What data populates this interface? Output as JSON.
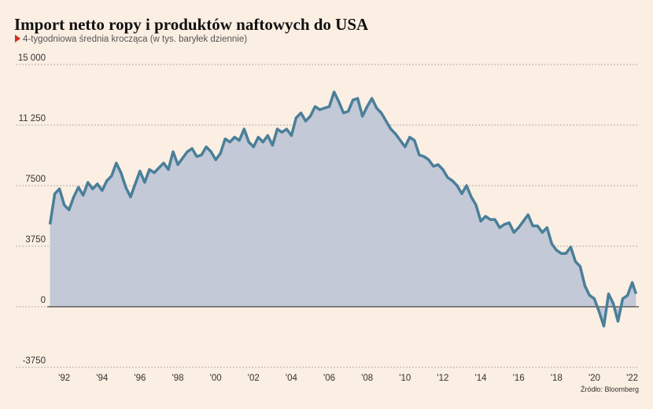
{
  "chart_data": {
    "type": "area",
    "title": "Import netto ropy i produktów naftowych do USA",
    "subtitle": "4-tygodniowa średnia krocząca (w tys. baryłek dziennie)",
    "source": "Źródło: Bloomberg",
    "color": "#4a7f99",
    "fill_color": "#c3c9d7",
    "x": [
      1991.25,
      1991.5,
      1991.75,
      1992.0,
      1992.25,
      1992.5,
      1992.75,
      1993.0,
      1993.25,
      1993.5,
      1993.75,
      1994.0,
      1994.25,
      1994.5,
      1994.75,
      1995.0,
      1995.25,
      1995.5,
      1995.75,
      1996.0,
      1996.25,
      1996.5,
      1996.75,
      1997.0,
      1997.25,
      1997.5,
      1997.75,
      1998.0,
      1998.25,
      1998.5,
      1998.75,
      1999.0,
      1999.25,
      1999.5,
      1999.75,
      2000.0,
      2000.25,
      2000.5,
      2000.75,
      2001.0,
      2001.25,
      2001.5,
      2001.75,
      2002.0,
      2002.25,
      2002.5,
      2002.75,
      2003.0,
      2003.25,
      2003.5,
      2003.75,
      2004.0,
      2004.25,
      2004.5,
      2004.75,
      2005.0,
      2005.25,
      2005.5,
      2005.75,
      2006.0,
      2006.25,
      2006.5,
      2006.75,
      2007.0,
      2007.25,
      2007.5,
      2007.75,
      2008.0,
      2008.25,
      2008.5,
      2008.75,
      2009.0,
      2009.25,
      2009.5,
      2009.75,
      2010.0,
      2010.25,
      2010.5,
      2010.75,
      2011.0,
      2011.25,
      2011.5,
      2011.75,
      2012.0,
      2012.25,
      2012.5,
      2012.75,
      2013.0,
      2013.25,
      2013.5,
      2013.75,
      2014.0,
      2014.25,
      2014.5,
      2014.75,
      2015.0,
      2015.25,
      2015.5,
      2015.75,
      2016.0,
      2016.25,
      2016.5,
      2016.75,
      2017.0,
      2017.25,
      2017.5,
      2017.75,
      2018.0,
      2018.25,
      2018.5,
      2018.75,
      2019.0,
      2019.25,
      2019.5,
      2019.75,
      2020.0,
      2020.25,
      2020.5,
      2020.75,
      2021.0,
      2021.25,
      2021.5,
      2021.75,
      2022.0,
      2022.2
    ],
    "values": [
      5100,
      7000,
      7300,
      6300,
      6000,
      6800,
      7400,
      6900,
      7700,
      7300,
      7600,
      7200,
      7800,
      8100,
      8900,
      8300,
      7400,
      6800,
      7600,
      8400,
      7700,
      8500,
      8300,
      8600,
      8900,
      8500,
      9600,
      8800,
      9200,
      9600,
      9800,
      9300,
      9400,
      9900,
      9600,
      9100,
      9500,
      10400,
      10200,
      10500,
      10300,
      11000,
      10200,
      9900,
      10500,
      10200,
      10600,
      10000,
      11000,
      10800,
      11000,
      10600,
      11700,
      12000,
      11500,
      11800,
      12400,
      12200,
      12300,
      12400,
      13300,
      12700,
      12000,
      12100,
      12800,
      12900,
      11800,
      12400,
      12900,
      12300,
      12000,
      11500,
      11000,
      10700,
      10300,
      9900,
      10500,
      10300,
      9400,
      9300,
      9100,
      8700,
      8800,
      8500,
      8000,
      7800,
      7500,
      7000,
      7500,
      6800,
      6300,
      5300,
      5600,
      5400,
      5400,
      4900,
      5100,
      5200,
      4600,
      4900,
      5300,
      5700,
      5000,
      5000,
      4600,
      4900,
      3900,
      3500,
      3300,
      3300,
      3700,
      2800,
      2500,
      1300,
      700,
      500,
      -300,
      -1200,
      800,
      200,
      -900,
      500,
      700,
      1500,
      800
    ],
    "xlim": [
      1991.1,
      2022.35
    ],
    "xticks": [
      {
        "value": 1992,
        "label": "'92"
      },
      {
        "value": 1994,
        "label": "'94"
      },
      {
        "value": 1996,
        "label": "'96"
      },
      {
        "value": 1998,
        "label": "'98"
      },
      {
        "value": 2000,
        "label": "'00"
      },
      {
        "value": 2002,
        "label": "'02"
      },
      {
        "value": 2004,
        "label": "'04"
      },
      {
        "value": 2006,
        "label": "'06"
      },
      {
        "value": 2008,
        "label": "'08"
      },
      {
        "value": 2010,
        "label": "'10"
      },
      {
        "value": 2012,
        "label": "'12"
      },
      {
        "value": 2014,
        "label": "'14"
      },
      {
        "value": 2016,
        "label": "'16"
      },
      {
        "value": 2018,
        "label": "'18"
      },
      {
        "value": 2020,
        "label": "'20"
      },
      {
        "value": 2022,
        "label": "'22"
      }
    ],
    "ylim": [
      -3750,
      15000
    ],
    "yticks": [
      {
        "value": 15000,
        "label": "15 000"
      },
      {
        "value": 11250,
        "label": "11 250"
      },
      7500,
      3750,
      0,
      -3750
    ],
    "grid": true
  }
}
